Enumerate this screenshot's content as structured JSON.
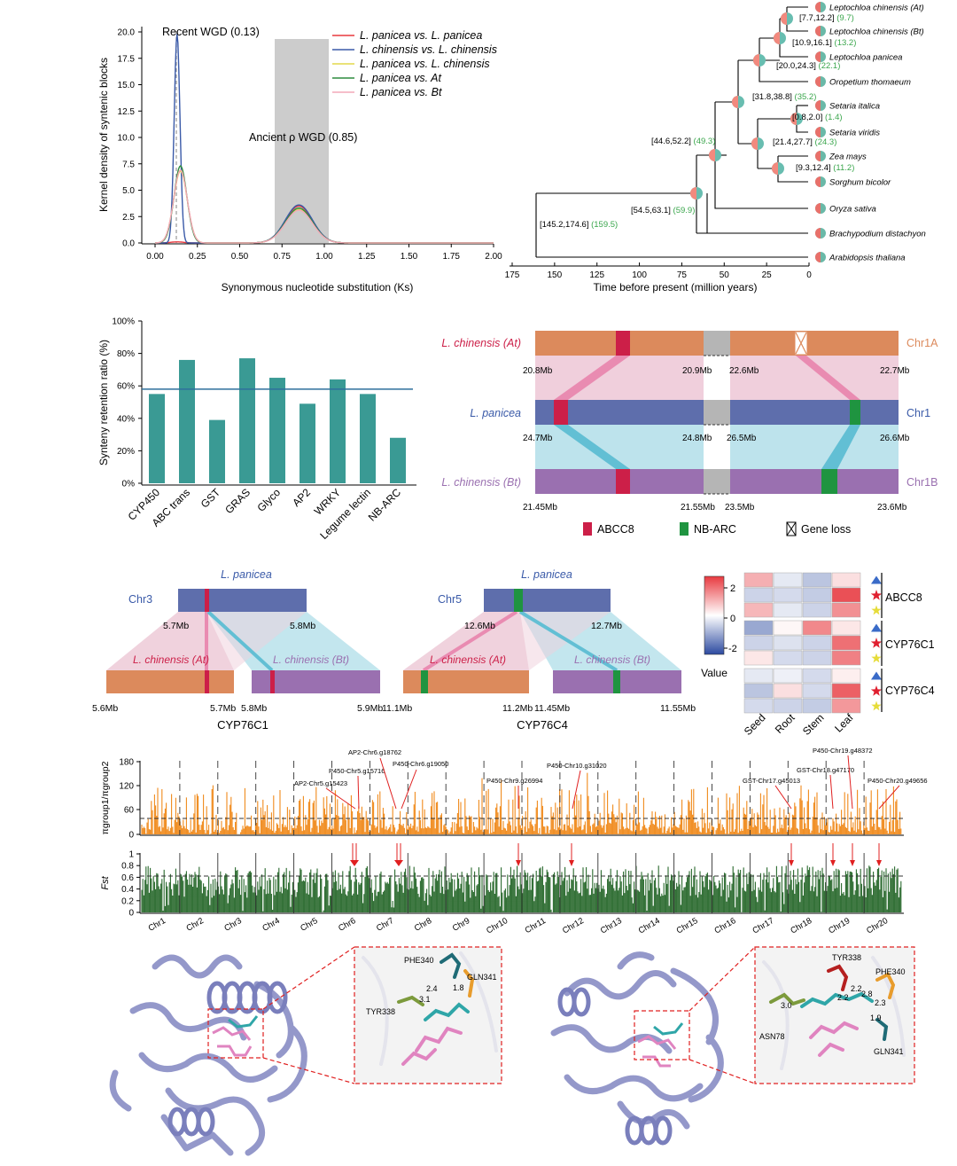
{
  "colors": {
    "red": "#e8393f",
    "blue": "#3a5aa8",
    "yellow": "#e4d94a",
    "green": "#2e8b3e",
    "pink": "#f4a8b8",
    "teal": "#3a9a94",
    "orange": "#dc8a5c",
    "slate": "#5e6eac",
    "purple": "#9a70b0",
    "abcc8": "#cc1f48",
    "nbarc": "#1f9440",
    "grey": "#cfcfcf",
    "pi_orange": "#f08a1c",
    "fst_green": "#2a6a2e",
    "link_pink": "#e8b4c8",
    "link_cyan": "#6cc4d6"
  },
  "panel_a": {
    "chart_data": {
      "type": "line",
      "title": "",
      "xlabel": "Synonymous nucleotide substitution (Ks)",
      "ylabel": "Kernel density of syntenic blocks",
      "xlim": [
        0,
        2.0
      ],
      "ylim": [
        0,
        20.0
      ],
      "xticks": [
        "0.00",
        "0.25",
        "0.50",
        "0.75",
        "1.00",
        "1.25",
        "1.50",
        "1.75",
        "2.00"
      ],
      "yticks": [
        "0.0",
        "2.5",
        "5.0",
        "7.5",
        "10.0",
        "12.5",
        "15.0",
        "17.5",
        "20.0"
      ],
      "series": [
        {
          "name": "L. panicea vs. L. panicea",
          "color_key": "red",
          "peaks": [
            [
              0.13,
              0.1,
              0.04
            ],
            [
              0.85,
              3.5,
              0.08
            ]
          ]
        },
        {
          "name": "L. chinensis vs. L. chinensis",
          "color_key": "blue",
          "peaks": [
            [
              0.13,
              19.8,
              0.017
            ],
            [
              0.85,
              3.6,
              0.08
            ]
          ]
        },
        {
          "name": "L. panicea vs. L. chinensis",
          "color_key": "yellow",
          "peaks": [
            [
              0.15,
              6.8,
              0.04
            ],
            [
              0.85,
              3.2,
              0.08
            ]
          ]
        },
        {
          "name": "L. panicea vs. At",
          "color_key": "green",
          "peaks": [
            [
              0.15,
              7.3,
              0.038
            ],
            [
              0.85,
              3.3,
              0.08
            ]
          ]
        },
        {
          "name": "L. panicea vs. Bt",
          "color_key": "pink",
          "peaks": [
            [
              0.15,
              6.9,
              0.04
            ],
            [
              0.85,
              3.1,
              0.08
            ]
          ]
        }
      ],
      "shaded_range": [
        0.7,
        1.02
      ],
      "dashed_line_at": 0.13,
      "annotations": [
        "Recent WGD (0.13)",
        "Ancient ρ WGD (0.85)"
      ]
    }
  },
  "panel_b": {
    "chart_data": {
      "type": "tree",
      "xlabel": "Time before present (million years)",
      "xlim": [
        175,
        0
      ],
      "xticks": [
        "175",
        "150",
        "125",
        "100",
        "75",
        "50",
        "25",
        "0"
      ],
      "species": [
        "Leptochloa chinensis (At)",
        "Leptochloa chinensis (Bt)",
        "Leptochloa panicea",
        "Oropetium thomaeum",
        "Setaria italica",
        "Setaria viridis",
        "Zea mays",
        "Sorghum bicolor",
        "Oryza sativa",
        "Brachypodium distachyon",
        "Arabidopsis thaliana"
      ],
      "nodes": [
        {
          "ci": "[7.7,12.2]",
          "age": "(9.7)",
          "age_value": 9.7
        },
        {
          "ci": "[10.9,16.1]",
          "age": "(13.2)",
          "age_value": 13.2
        },
        {
          "ci": "[20.0,24.3]",
          "age": "(22.1)",
          "age_value": 22.1
        },
        {
          "ci": "[31.8,38.8]",
          "age": "(35.2)",
          "age_value": 35.2
        },
        {
          "ci": "[0.8,2.0]",
          "age": "(1.4)",
          "age_value": 1.4
        },
        {
          "ci": "[21.4,27.7]",
          "age": "(24.3)",
          "age_value": 24.3
        },
        {
          "ci": "[9.3,12.4]",
          "age": "(11.2)",
          "age_value": 11.2
        },
        {
          "ci": "[44.6,52.2]",
          "age": "(49.3)",
          "age_value": 49.3
        },
        {
          "ci": "[54.5,63.1]",
          "age": "(59.9)",
          "age_value": 59.9
        },
        {
          "ci": "[145.2,174.6]",
          "age": "(159.5)",
          "age_value": 159.5
        }
      ]
    }
  },
  "panel_c": {
    "chart_data": {
      "type": "bar",
      "ylabel": "Synteny retention ratio (%)",
      "ylim": [
        0,
        100
      ],
      "yticks": [
        "0%",
        "20%",
        "40%",
        "60%",
        "80%",
        "100%"
      ],
      "categories": [
        "CYP450",
        "ABC trans",
        "GST",
        "GRAS",
        "Glyco",
        "AP2",
        "WRKY",
        "Legume lectin",
        "NB-ARC"
      ],
      "values": [
        55,
        76,
        39,
        77,
        65,
        49,
        64,
        55,
        28
      ],
      "reference_line": 58
    }
  },
  "panel_d": {
    "tracks": [
      {
        "label": "L. chinensis (At)",
        "chr": "Chr1A",
        "ticks": [
          "20.8Mb",
          "20.9Mb",
          "22.6Mb",
          "22.7Mb"
        ]
      },
      {
        "label": "L. panicea",
        "chr": "Chr1",
        "ticks": [
          "24.7Mb",
          "24.8Mb",
          "26.5Mb",
          "26.6Mb"
        ]
      },
      {
        "label": "L. chinensis (Bt)",
        "chr": "Chr1B",
        "ticks": [
          "21.45Mb",
          "21.55Mb",
          "23.5Mb",
          "23.6Mb"
        ]
      }
    ],
    "legend": [
      "ABCC8",
      "NB-ARC",
      "Gene loss"
    ]
  },
  "panel_e": {
    "blocks": [
      {
        "title": "L. panicea",
        "chr": "Chr3",
        "mid": [
          "5.7Mb",
          "5.8Mb"
        ],
        "at": "L. chinensis (At)",
        "bt": "L. chinensis (Bt)",
        "bottom": [
          "5.6Mb",
          "5.7Mb",
          "5.8Mb",
          "5.9Mb"
        ],
        "gene": "CYP76C1"
      },
      {
        "title": "L. panicea",
        "chr": "Chr5",
        "mid": [
          "12.6Mb",
          "12.7Mb"
        ],
        "at": "L. chinensis (At)",
        "bt": "L. chinensis (Bt)",
        "bottom": [
          "11.1Mb",
          "11.2Mb",
          "11.45Mb",
          "11.55Mb"
        ],
        "gene": "CYP76C4"
      }
    ]
  },
  "panel_f": {
    "chart_data": {
      "type": "heatmap",
      "columns": [
        "Seed",
        "Root",
        "Stem",
        "Leaf"
      ],
      "row_groups": [
        "ABCC8",
        "CYP76C1",
        "CYP76C4"
      ],
      "colorbar_ticks": [
        "2",
        "0",
        "-2"
      ],
      "colorbar_label": "Value",
      "values": [
        [
          1.0,
          -0.3,
          -0.8,
          0.4
        ],
        [
          -0.6,
          -0.5,
          -0.7,
          2.2
        ],
        [
          0.9,
          -0.3,
          -0.6,
          1.4
        ],
        [
          -1.2,
          0.1,
          1.5,
          0.3
        ],
        [
          -0.6,
          -0.4,
          -0.6,
          1.8
        ],
        [
          0.3,
          -0.5,
          -0.6,
          1.6
        ],
        [
          -0.3,
          -0.2,
          -0.5,
          0.2
        ],
        [
          -0.8,
          0.4,
          -0.5,
          2.0
        ],
        [
          -0.5,
          -0.6,
          -0.7,
          1.3
        ]
      ]
    }
  },
  "panel_g": {
    "chart_data": {
      "type": "bar",
      "top": {
        "ylabel": "πgroup1/πgroup2",
        "yticks": [
          "0",
          "30",
          "60",
          "120",
          "180"
        ],
        "threshold": 30
      },
      "bottom": {
        "ylabel": "Fst",
        "yticks": [
          "0",
          "0.2",
          "0.4",
          "0.6",
          "0.8",
          "1"
        ],
        "threshold": 0.7
      },
      "chromosomes": [
        "Chr1",
        "Chr2",
        "Chr3",
        "Chr4",
        "Chr5",
        "Chr6",
        "Chr7",
        "Chr8",
        "Chr9",
        "Chr10",
        "Chr11",
        "Chr12",
        "Chr13",
        "Chr14",
        "Chr15",
        "Chr16",
        "Chr17",
        "Chr18",
        "Chr19",
        "Chr20"
      ],
      "gene_annotations": [
        "AP2-Chr5.g15423",
        "P450-Chr5.g15716",
        "AP2-Chr6.g18762",
        "P450-Chr6.g19050",
        "P450-Chr9.g26994",
        "P450-Chr10.g31020",
        "GST-Chr17.g45013",
        "GST-Chr18.g47170",
        "P450-Chr19.g48372",
        "P450-Chr20.g49656"
      ]
    }
  },
  "panel_h": {
    "left_residues": [
      "PHE340",
      "GLN341",
      "TYR338"
    ],
    "left_distances": [
      "2.4",
      "1.8",
      "3.1"
    ],
    "right_residues": [
      "TYR338",
      "PHE340",
      "ASN78",
      "GLN341"
    ],
    "right_distances": [
      "2.2",
      "2.8",
      "2.3",
      "3.0",
      "2.2",
      "1.9"
    ]
  }
}
